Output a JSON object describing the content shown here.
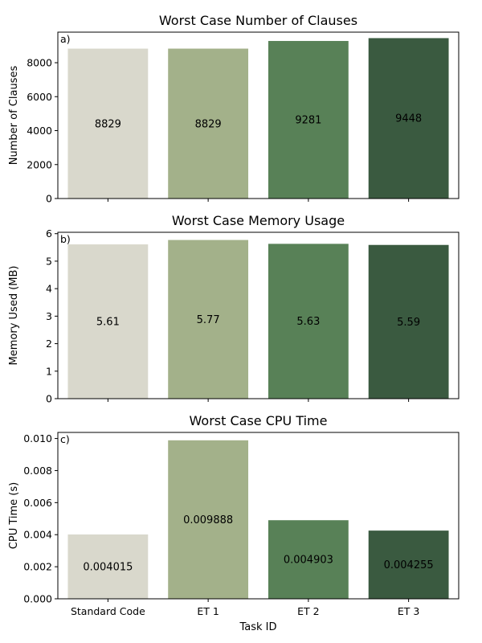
{
  "colors": [
    "#d9d8cc",
    "#a3b18a",
    "#588157",
    "#3a5a40"
  ],
  "chart_data": [
    {
      "type": "bar",
      "panel_letter": "a)",
      "title": "Worst Case Number of Clauses",
      "xlabel": "",
      "ylabel": "Number of Clauses",
      "categories": [
        "Standard Code",
        "ET 1",
        "ET 2",
        "ET 3"
      ],
      "values": [
        8829,
        8829,
        9281,
        9448
      ],
      "data_labels": [
        "8829",
        "8829",
        "9281",
        "9448"
      ],
      "ylim": [
        0,
        9800
      ],
      "yticks": [
        0,
        2000,
        4000,
        6000,
        8000
      ],
      "ytick_labels": [
        "0",
        "2000",
        "4000",
        "6000",
        "8000"
      ],
      "show_xtick_labels": false,
      "grid": false
    },
    {
      "type": "bar",
      "panel_letter": "b)",
      "title": "Worst Case Memory Usage",
      "xlabel": "",
      "ylabel": "Memory Used (MB)",
      "categories": [
        "Standard Code",
        "ET 1",
        "ET 2",
        "ET 3"
      ],
      "values": [
        5.61,
        5.77,
        5.63,
        5.59
      ],
      "data_labels": [
        "5.61",
        "5.77",
        "5.63",
        "5.59"
      ],
      "ylim": [
        0,
        6.05
      ],
      "yticks": [
        0,
        1,
        2,
        3,
        4,
        5,
        6
      ],
      "ytick_labels": [
        "0",
        "1",
        "2",
        "3",
        "4",
        "5",
        "6"
      ],
      "show_xtick_labels": false,
      "grid": false
    },
    {
      "type": "bar",
      "panel_letter": "c)",
      "title": "Worst Case CPU Time",
      "xlabel": "Task ID",
      "ylabel": "CPU Time (s)",
      "categories": [
        "Standard Code",
        "ET 1",
        "ET 2",
        "ET 3"
      ],
      "values": [
        0.004015,
        0.009888,
        0.004903,
        0.004255
      ],
      "data_labels": [
        "0.004015",
        "0.009888",
        "0.004903",
        "0.004255"
      ],
      "ylim": [
        0,
        0.01038
      ],
      "yticks": [
        0,
        0.002,
        0.004,
        0.006,
        0.008,
        0.01
      ],
      "ytick_labels": [
        "0.000",
        "0.002",
        "0.004",
        "0.006",
        "0.008",
        "0.010"
      ],
      "show_xtick_labels": true,
      "grid": false
    }
  ]
}
